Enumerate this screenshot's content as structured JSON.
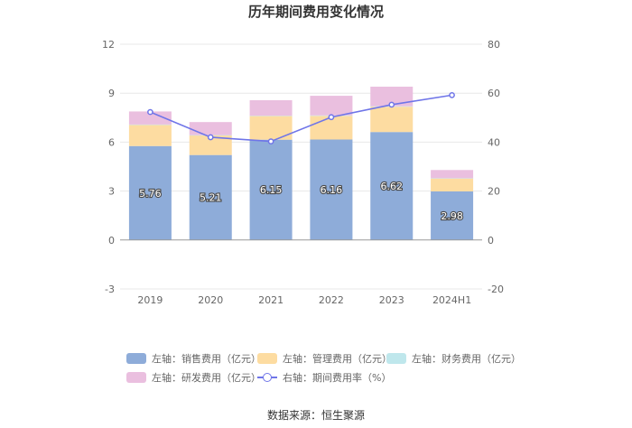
{
  "chart_data": {
    "type": "bar",
    "title": "历年期间费用变化情况",
    "categories": [
      "2019",
      "2020",
      "2021",
      "2022",
      "2023",
      "2024H1"
    ],
    "left_axis": {
      "ylim": [
        -3,
        12
      ],
      "ticks": [
        "-3",
        "0",
        "3",
        "6",
        "9",
        "12"
      ]
    },
    "right_axis": {
      "ylim": [
        -20,
        80
      ],
      "ticks": [
        "-20",
        "0",
        "20",
        "40",
        "60",
        "80"
      ]
    },
    "series": [
      {
        "name": "左轴：销售费用（亿元）",
        "axis": "left",
        "stack": true,
        "color": "#8eacd9",
        "values": [
          5.76,
          5.21,
          6.15,
          6.16,
          6.62,
          2.98
        ],
        "labels": [
          "5.76",
          "5.21",
          "6.15",
          "6.16",
          "6.62",
          "2.98"
        ]
      },
      {
        "name": "左轴：管理费用（亿元）",
        "axis": "left",
        "stack": true,
        "color": "#fddca1",
        "values": [
          1.3,
          1.2,
          1.45,
          1.45,
          1.55,
          0.8
        ]
      },
      {
        "name": "左轴：财务费用（亿元）",
        "axis": "left",
        "stack": true,
        "color": "#bfe7ec",
        "values": [
          0.02,
          0.02,
          0.02,
          0.03,
          0.03,
          0.01
        ]
      },
      {
        "name": "左轴：研发费用（亿元）",
        "axis": "left",
        "stack": true,
        "color": "#eabfdf",
        "values": [
          0.8,
          0.8,
          0.95,
          1.2,
          1.2,
          0.5
        ]
      },
      {
        "name": "右轴：期间费用率（%）",
        "axis": "right",
        "type": "line",
        "color": "#6f75e8",
        "values": [
          52.3,
          42.0,
          40.3,
          50.2,
          55.3,
          59.2
        ]
      }
    ],
    "legend_position": "bottom",
    "source": "数据来源：恒生聚源"
  }
}
